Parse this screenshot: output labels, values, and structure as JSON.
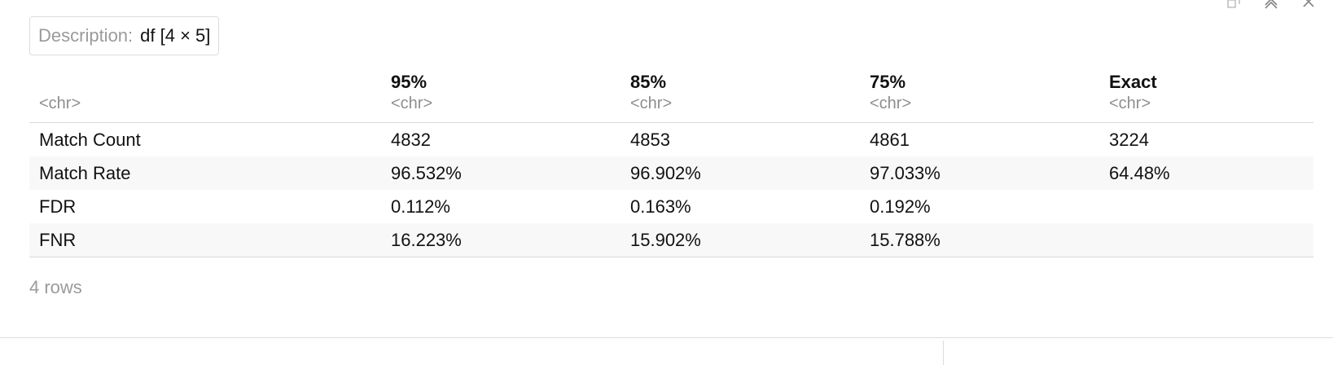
{
  "description": {
    "label": "Description:",
    "value": "df [4 × 5]"
  },
  "window_controls": [
    {
      "icon": "popout-icon"
    },
    {
      "icon": "collapse-icon"
    },
    {
      "icon": "close-icon"
    }
  ],
  "table": {
    "columns": [
      {
        "name": "",
        "type": "<chr>"
      },
      {
        "name": "95%",
        "type": "<chr>"
      },
      {
        "name": "85%",
        "type": "<chr>"
      },
      {
        "name": "75%",
        "type": "<chr>"
      },
      {
        "name": "Exact",
        "type": "<chr>"
      }
    ],
    "rows": [
      [
        "Match Count",
        "4832",
        "4853",
        "4861",
        "3224"
      ],
      [
        "Match Rate",
        "96.532%",
        "96.902%",
        "97.033%",
        "64.48%"
      ],
      [
        "FDR",
        "0.112%",
        "0.163%",
        "0.192%",
        ""
      ],
      [
        "FNR",
        "16.223%",
        "15.902%",
        "15.788%",
        ""
      ]
    ]
  },
  "footer": {
    "row_count": "4 rows"
  }
}
